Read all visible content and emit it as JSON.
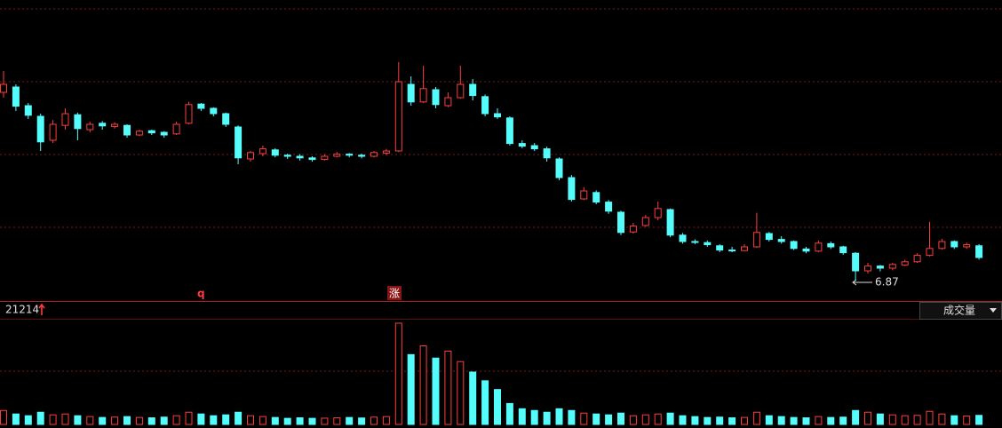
{
  "chart_data": {
    "type": "candlestick",
    "open": [
      10.4,
      10.5,
      10.15,
      9.95,
      9.5,
      9.78,
      9.98,
      9.7,
      9.82,
      9.76,
      9.78,
      9.6,
      9.68,
      9.65,
      9.62,
      9.82,
      10.18,
      10.1,
      10.0,
      9.75,
      9.15,
      9.25,
      9.32,
      9.22,
      9.2,
      9.17,
      9.14,
      9.2,
      9.24,
      9.22,
      9.2,
      9.26,
      9.3,
      10.55,
      10.22,
      10.45,
      10.15,
      10.3,
      10.55,
      10.32,
      10.0,
      9.92,
      9.44,
      9.4,
      9.34,
      9.15,
      8.8,
      8.4,
      8.52,
      8.34,
      8.15,
      7.78,
      7.9,
      8.05,
      8.2,
      7.72,
      7.6,
      7.58,
      7.52,
      7.44,
      7.43,
      7.5,
      7.75,
      7.64,
      7.6,
      7.46,
      7.42,
      7.56,
      7.5,
      7.38,
      7.05,
      7.14,
      7.1,
      7.16,
      7.22,
      7.34,
      7.47,
      7.6,
      7.5,
      7.52
    ],
    "high": [
      10.8,
      10.55,
      10.2,
      10.0,
      9.88,
      10.1,
      10.02,
      9.85,
      9.86,
      9.84,
      9.8,
      9.7,
      9.7,
      9.67,
      9.85,
      10.22,
      10.2,
      10.12,
      10.02,
      9.78,
      9.3,
      9.4,
      9.35,
      9.25,
      9.24,
      9.2,
      9.24,
      9.28,
      9.26,
      9.25,
      9.3,
      9.34,
      10.97,
      10.7,
      10.9,
      10.5,
      10.4,
      10.9,
      10.65,
      10.36,
      10.1,
      9.95,
      9.5,
      9.45,
      9.38,
      9.18,
      8.85,
      8.62,
      8.56,
      8.38,
      8.18,
      7.95,
      8.1,
      8.35,
      8.22,
      7.76,
      7.64,
      7.62,
      7.55,
      7.5,
      7.55,
      8.14,
      7.78,
      7.7,
      7.62,
      7.5,
      7.62,
      7.6,
      7.52,
      7.4,
      7.2,
      7.16,
      7.2,
      7.26,
      7.38,
      7.97,
      7.65,
      7.62,
      7.58,
      7.55
    ],
    "low": [
      10.3,
      10.05,
      9.9,
      9.3,
      9.45,
      9.7,
      9.5,
      9.65,
      9.7,
      9.72,
      9.55,
      9.58,
      9.6,
      9.55,
      9.6,
      9.8,
      10.05,
      9.95,
      9.75,
      9.05,
      9.1,
      9.2,
      9.18,
      9.15,
      9.12,
      9.1,
      9.12,
      9.18,
      9.18,
      9.16,
      9.18,
      9.22,
      9.28,
      10.15,
      10.2,
      10.1,
      10.12,
      10.28,
      10.25,
      9.95,
      9.9,
      9.4,
      9.35,
      9.3,
      9.1,
      8.75,
      8.35,
      8.38,
      8.3,
      8.12,
      7.72,
      7.75,
      7.88,
      8.0,
      7.68,
      7.56,
      7.55,
      7.5,
      7.4,
      7.4,
      7.42,
      7.48,
      7.6,
      7.56,
      7.44,
      7.38,
      7.4,
      7.46,
      7.35,
      6.87,
      7.0,
      7.04,
      7.06,
      7.14,
      7.2,
      7.32,
      7.45,
      7.46,
      7.46,
      7.26
    ],
    "close": [
      10.55,
      10.14,
      9.97,
      9.47,
      9.8,
      10.0,
      9.72,
      9.8,
      9.77,
      9.8,
      9.6,
      9.67,
      9.64,
      9.6,
      9.8,
      10.17,
      10.1,
      10.0,
      9.8,
      9.17,
      9.27,
      9.34,
      9.22,
      9.2,
      9.17,
      9.14,
      9.2,
      9.24,
      9.22,
      9.2,
      9.27,
      9.3,
      10.6,
      10.22,
      10.47,
      10.17,
      10.3,
      10.55,
      10.34,
      10.0,
      9.94,
      9.44,
      9.39,
      9.34,
      9.17,
      8.8,
      8.39,
      8.55,
      8.34,
      8.17,
      7.77,
      7.89,
      8.05,
      8.22,
      7.72,
      7.6,
      7.59,
      7.54,
      7.44,
      7.43,
      7.5,
      7.77,
      7.64,
      7.6,
      7.47,
      7.42,
      7.57,
      7.5,
      7.39,
      7.05,
      7.14,
      7.1,
      7.17,
      7.22,
      7.34,
      7.47,
      7.6,
      7.5,
      7.54,
      7.3
    ],
    "volume": [
      8000,
      6000,
      5000,
      7000,
      5500,
      6000,
      5000,
      4500,
      4000,
      4200,
      4500,
      4000,
      3800,
      4200,
      5000,
      7000,
      6000,
      5000,
      5500,
      7000,
      5000,
      4500,
      4000,
      3500,
      3800,
      3500,
      3600,
      3800,
      4000,
      3700,
      4200,
      4500,
      58000,
      40000,
      45000,
      38000,
      42000,
      36000,
      30000,
      25000,
      20000,
      12000,
      9000,
      8000,
      7000,
      9000,
      8000,
      6500,
      6000,
      5500,
      6500,
      5000,
      5500,
      6000,
      6500,
      5000,
      4500,
      4000,
      4200,
      3800,
      4000,
      7000,
      5000,
      4500,
      4000,
      3800,
      4500,
      4000,
      4200,
      8000,
      7000,
      6000,
      5500,
      5000,
      5200,
      7500,
      6000,
      5000,
      4800,
      5200
    ],
    "ylim": [
      6.5,
      12.05
    ],
    "vlim": [
      0,
      60000
    ],
    "colors": {
      "up": "#ff3c3c",
      "down": "#54fcfc"
    },
    "signals": [
      "q",
      "涨"
    ],
    "volume_value": 21214,
    "indicator": "成交量"
  }
}
